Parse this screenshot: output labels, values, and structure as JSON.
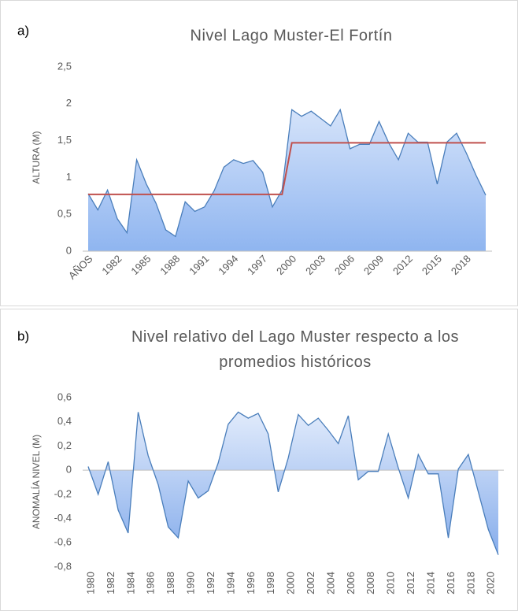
{
  "chart_data": [
    {
      "type": "area",
      "panel_label": "a)",
      "title": "Nivel Lago Muster-El Fortín",
      "y_label": "ALTURA (M)",
      "categories": [
        "AÑOS",
        null,
        null,
        "1982",
        null,
        null,
        "1985",
        null,
        null,
        "1988",
        null,
        null,
        "1991",
        null,
        null,
        "1994",
        null,
        null,
        "1997",
        null,
        null,
        "2000",
        null,
        null,
        "2003",
        null,
        null,
        "2006",
        null,
        null,
        "2009",
        null,
        null,
        "2012",
        null,
        null,
        "2015",
        null,
        null,
        "2018",
        null,
        null
      ],
      "series": [
        {
          "color": "#4a7ebb",
          "fill": "url(#gA)",
          "values": [
            0.78,
            0.56,
            0.83,
            0.44,
            0.25,
            1.24,
            0.91,
            0.65,
            0.29,
            0.2,
            0.67,
            0.54,
            0.6,
            0.82,
            1.14,
            1.24,
            1.19,
            1.23,
            1.07,
            0.6,
            0.83,
            1.92,
            1.83,
            1.9,
            1.8,
            1.7,
            1.92,
            1.39,
            1.45,
            1.45,
            1.76,
            1.47,
            1.24,
            1.6,
            1.48,
            1.48,
            0.91,
            1.48,
            1.6,
            1.33,
            1.03,
            0.76
          ]
        },
        {
          "color": "#c0504d",
          "type": "line",
          "values": [
            0.77,
            0.77,
            0.77,
            0.77,
            0.77,
            0.77,
            0.77,
            0.77,
            0.77,
            0.77,
            0.77,
            0.77,
            0.77,
            0.77,
            0.77,
            0.77,
            0.77,
            0.77,
            0.77,
            0.77,
            0.77,
            1.47,
            1.47,
            1.47,
            1.47,
            1.47,
            1.47,
            1.47,
            1.47,
            1.47,
            1.47,
            1.47,
            1.47,
            1.47,
            1.47,
            1.47,
            1.47,
            1.47,
            1.47,
            1.47,
            1.47,
            1.47
          ]
        }
      ],
      "ylim": [
        0,
        2.5
      ],
      "yticks": [
        0,
        {
          "value": 0.5,
          "label": "0,5"
        },
        1,
        {
          "value": 1.5,
          "label": "1,5"
        },
        2,
        {
          "value": 2.5,
          "label": "2,5"
        }
      ],
      "x_label_rotation": -45
    },
    {
      "type": "area",
      "panel_label": "b)",
      "title": "Nivel relativo del Lago Muster respecto a los promedios históricos",
      "y_label": "ANOMALÍA NIVEL (M)",
      "categories": [
        "1980",
        null,
        "1982",
        null,
        "1984",
        null,
        "1986",
        null,
        "1988",
        null,
        "1990",
        null,
        "1992",
        null,
        "1994",
        null,
        "1996",
        null,
        "1998",
        null,
        "2000",
        null,
        "2002",
        null,
        "2004",
        null,
        "2006",
        null,
        "2008",
        null,
        "2010",
        null,
        "2012",
        null,
        "2014",
        null,
        "2016",
        null,
        "2018",
        null,
        "2020",
        null
      ],
      "series": [
        {
          "color": "#4a7ebb",
          "fill": "url(#gB)",
          "values": [
            0.03,
            -0.2,
            0.07,
            -0.33,
            -0.52,
            0.48,
            0.12,
            -0.12,
            -0.47,
            -0.56,
            -0.09,
            -0.23,
            -0.17,
            0.06,
            0.38,
            0.48,
            0.43,
            0.47,
            0.3,
            -0.18,
            0.1,
            0.46,
            0.37,
            0.43,
            0.33,
            0.22,
            0.45,
            -0.08,
            -0.01,
            -0.01,
            0.3,
            0.02,
            -0.23,
            0.13,
            -0.03,
            -0.03,
            -0.56,
            0.01,
            0.13,
            -0.18,
            -0.49,
            -0.7
          ]
        }
      ],
      "ylim": [
        -0.8,
        0.6
      ],
      "yticks": [
        {
          "value": -0.8,
          "label": "-0,8"
        },
        {
          "value": -0.6,
          "label": "-0,6"
        },
        {
          "value": -0.4,
          "label": "-0,4"
        },
        {
          "value": -0.2,
          "label": "-0,2"
        },
        0,
        {
          "value": 0.2,
          "label": "0,2"
        },
        {
          "value": 0.4,
          "label": "0,4"
        },
        {
          "value": 0.6,
          "label": "0,6"
        }
      ],
      "x_label_rotation": -90
    }
  ]
}
